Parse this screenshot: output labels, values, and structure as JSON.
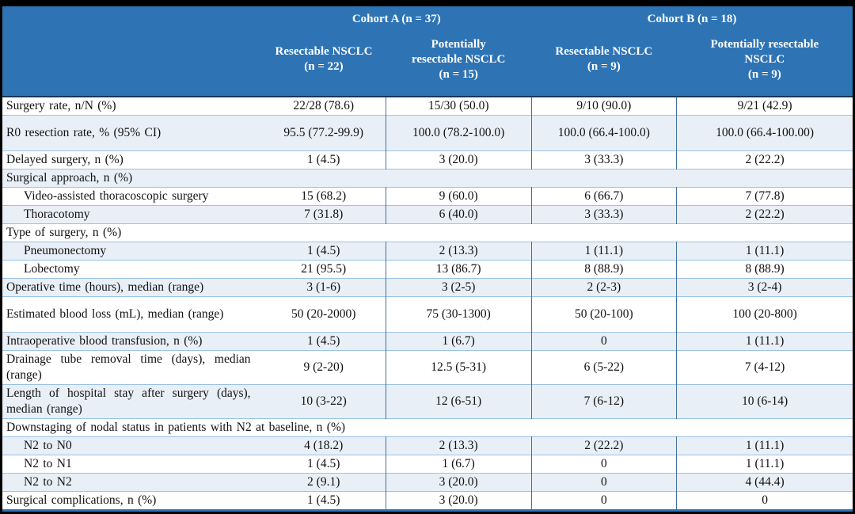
{
  "colors": {
    "header_bg": "#2E74B5",
    "header_text": "#FFFFFF",
    "stripe_bg": "#E9EFF7",
    "row_border": "#9CC3E6",
    "column_border": "#41719C",
    "header_divider": "#17365D",
    "table_bottom_border": "#2E74B5",
    "frame": "#000000"
  },
  "table": {
    "cohorts": [
      {
        "label": "Cohort A (n = 37)",
        "span": 2
      },
      {
        "label": "Cohort B (n = 18)",
        "span": 2
      }
    ],
    "columns": [
      {
        "lines": [
          "Resectable NSCLC",
          "(n = 22)"
        ]
      },
      {
        "lines": [
          "Potentially",
          "resectable NSCLC",
          "(n = 15)"
        ]
      },
      {
        "lines": [
          "Resectable NSCLC",
          "(n = 9)"
        ]
      },
      {
        "lines": [
          "Potentially resectable",
          "NSCLC",
          "(n = 9)"
        ]
      }
    ],
    "rows": [
      {
        "type": "data",
        "label": "Surgery rate, n/N (%)",
        "values": [
          "22/28 (78.6)",
          "15/30 (50.0)",
          "9/10 (90.0)",
          "9/21 (42.9)"
        ]
      },
      {
        "type": "data",
        "tall": true,
        "label": "R0 resection rate, % (95% CI)",
        "values": [
          "95.5 (77.2-99.9)",
          "100.0 (78.2-100.0)",
          "100.0 (66.4-100.0)",
          "100.0 (66.4-100.00)"
        ]
      },
      {
        "type": "data",
        "label": "Delayed surgery, n (%)",
        "values": [
          "1 (4.5)",
          "3 (20.0)",
          "3 (33.3)",
          "2 (22.2)"
        ]
      },
      {
        "type": "section",
        "label": "Surgical approach, n (%)"
      },
      {
        "type": "data",
        "indent": true,
        "label": "Video-assisted thoracoscopic surgery",
        "values": [
          "15 (68.2)",
          "9 (60.0)",
          "6 (66.7)",
          "7 (77.8)"
        ]
      },
      {
        "type": "data",
        "indent": true,
        "label": "Thoracotomy",
        "values": [
          "7 (31.8)",
          "6 (40.0)",
          "3 (33.3)",
          "2 (22.2)"
        ]
      },
      {
        "type": "section",
        "label": "Type of surgery, n (%)"
      },
      {
        "type": "data",
        "indent": true,
        "label": "Pneumonectomy",
        "values": [
          "1 (4.5)",
          "2 (13.3)",
          "1 (11.1)",
          "1 (11.1)"
        ]
      },
      {
        "type": "data",
        "indent": true,
        "label": "Lobectomy",
        "values": [
          "21 (95.5)",
          "13 (86.7)",
          "8 (88.9)",
          "8 (88.9)"
        ]
      },
      {
        "type": "data",
        "label": "Operative time (hours), median (range)",
        "values": [
          "3 (1-6)",
          "3 (2-5)",
          "2 (2-3)",
          "3 (2-4)"
        ]
      },
      {
        "type": "data",
        "tall": true,
        "label": "Estimated blood loss (mL), median (range)",
        "values": [
          "50 (20-2000)",
          "75 (30-1300)",
          "50 (20-100)",
          "100 (20-800)"
        ]
      },
      {
        "type": "data",
        "label": "Intraoperative blood transfusion, n (%)",
        "values": [
          "1 (4.5)",
          "1 (6.7)",
          "0",
          "1 (11.1)"
        ]
      },
      {
        "type": "data",
        "label": "Drainage tube removal time (days), median (range)",
        "values": [
          "9 (2-20)",
          "12.5 (5-31)",
          "6 (5-22)",
          "7 (4-12)"
        ]
      },
      {
        "type": "data",
        "label": "Length of hospital stay after surgery (days), median (range)",
        "values": [
          "10 (3-22)",
          "12 (6-51)",
          "7 (6-12)",
          "10 (6-14)"
        ]
      },
      {
        "type": "section",
        "label": "Downstaging of nodal status in patients with N2 at baseline, n (%)"
      },
      {
        "type": "data",
        "indent": true,
        "label": "N2 to N0",
        "values": [
          "4 (18.2)",
          "2 (13.3)",
          "2 (22.2)",
          "1 (11.1)"
        ]
      },
      {
        "type": "data",
        "indent": true,
        "label": "N2 to N1",
        "values": [
          "1 (4.5)",
          "1 (6.7)",
          "0",
          "1 (11.1)"
        ]
      },
      {
        "type": "data",
        "indent": true,
        "label": "N2 to N2",
        "values": [
          "2 (9.1)",
          "3 (20.0)",
          "0",
          "4 (44.4)"
        ]
      },
      {
        "type": "data",
        "label": "Surgical complications, n (%)",
        "values": [
          "1 (4.5)",
          "3 (20.0)",
          "0",
          "0"
        ]
      }
    ]
  }
}
